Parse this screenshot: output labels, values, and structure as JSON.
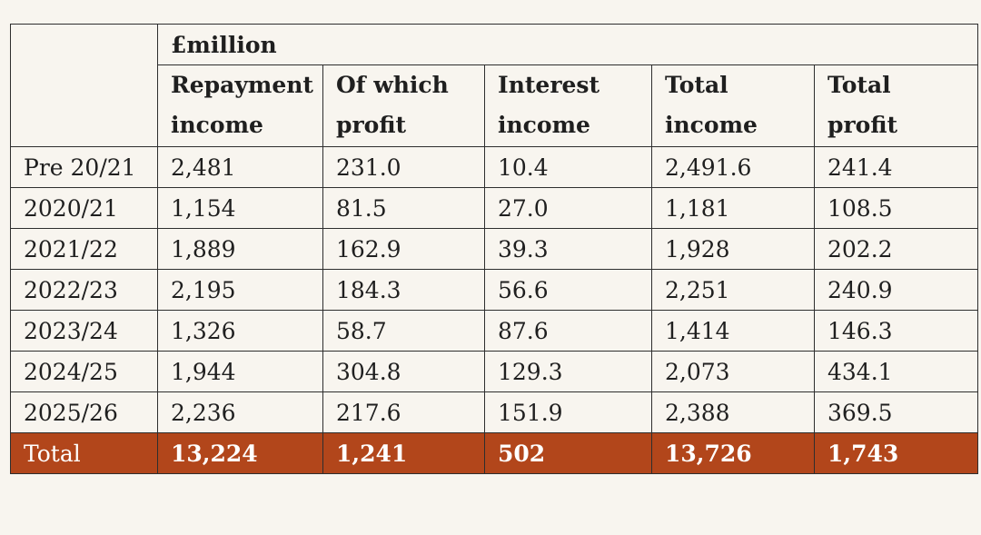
{
  "table": {
    "unit_label": "£million",
    "columns": [
      {
        "line1": "Repayment",
        "line2": "income"
      },
      {
        "line1": "Of which",
        "line2": "profit"
      },
      {
        "line1": "Interest",
        "line2": "income"
      },
      {
        "line1": "Total",
        "line2": "income"
      },
      {
        "line1": "Total",
        "line2": "profit"
      }
    ],
    "rows": [
      {
        "label": "Pre 20/21",
        "values": [
          "2,481",
          "231.0",
          "10.4",
          "2,491.6",
          "241.4"
        ]
      },
      {
        "label": "2020/21",
        "values": [
          "1,154",
          "81.5",
          "27.0",
          "1,181",
          "108.5"
        ]
      },
      {
        "label": "2021/22",
        "values": [
          "1,889",
          "162.9",
          "39.3",
          "1,928",
          "202.2"
        ]
      },
      {
        "label": "2022/23",
        "values": [
          "2,195",
          "184.3",
          "56.6",
          "2,251",
          "240.9"
        ]
      },
      {
        "label": "2023/24",
        "values": [
          "1,326",
          "58.7",
          "87.6",
          "1,414",
          "146.3"
        ]
      },
      {
        "label": "2024/25",
        "values": [
          "1,944",
          "304.8",
          "129.3",
          "2,073",
          "434.1"
        ]
      },
      {
        "label": "2025/26",
        "values": [
          "2,236",
          "217.6",
          "151.9",
          "2,388",
          "369.5"
        ]
      }
    ],
    "total": {
      "label": "Total",
      "values": [
        "13,224",
        "1,241",
        "502",
        "13,726",
        "1,743"
      ]
    },
    "colors": {
      "total_row_background": "#b2461b",
      "total_row_text": "#ffffff",
      "background": "#f8f5ef",
      "border": "#2e2e2e"
    }
  }
}
